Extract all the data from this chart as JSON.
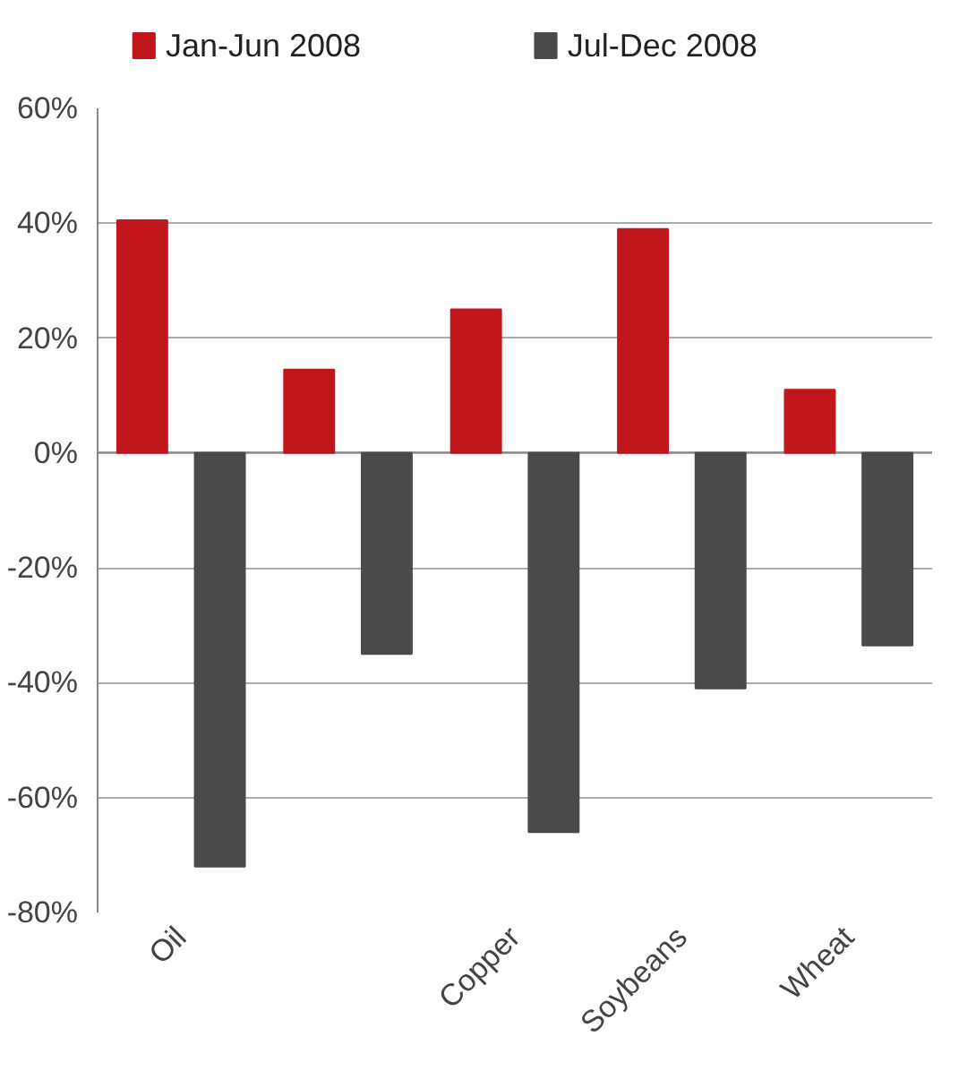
{
  "chart_data": {
    "type": "bar",
    "categories": [
      "Oil",
      null,
      "Copper",
      "Soybeans",
      "Wheat"
    ],
    "series": [
      {
        "name": "Jan-Jun 2008",
        "color": "#c0161c",
        "values": [
          40.5,
          14.5,
          25,
          39,
          11
        ]
      },
      {
        "name": "Jul-Dec 2008",
        "color": "#4a4a4a",
        "values": [
          -72,
          -35,
          -66,
          -41,
          -33.5
        ]
      }
    ],
    "ylim": [
      -80,
      60
    ],
    "yticks": [
      {
        "value": -80,
        "label": "-80%"
      },
      {
        "value": -60,
        "label": "-60%"
      },
      {
        "value": -40,
        "label": "-40%"
      },
      {
        "value": -20,
        "label": "-20%"
      },
      {
        "value": 0,
        "label": "0%"
      },
      {
        "value": 20,
        "label": "20%"
      },
      {
        "value": 40,
        "label": "40%"
      },
      {
        "value": 60,
        "label": "60%"
      }
    ],
    "grid": "y",
    "legend": "top"
  }
}
